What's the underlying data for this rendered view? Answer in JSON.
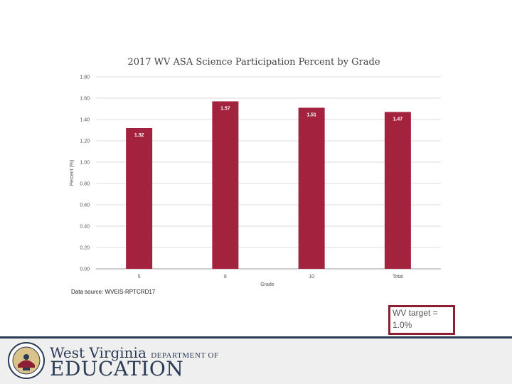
{
  "chart_data": {
    "type": "bar",
    "title": "2017 WV ASA Science Participation Percent by Grade",
    "categories": [
      "5",
      "8",
      "10",
      "Total"
    ],
    "values": [
      1.32,
      1.57,
      1.51,
      1.47
    ],
    "value_labels": [
      "1.32",
      "1.57",
      "1.51",
      "1.47"
    ],
    "xlabel": "Grade",
    "ylabel": "Percent (%)",
    "ylim": [
      0,
      1.8
    ],
    "yticks": [
      "0.00",
      "0.20",
      "0.40",
      "0.60",
      "0.80",
      "1.00",
      "1.20",
      "1.40",
      "1.60",
      "1.80"
    ],
    "grid": true,
    "bar_color": "#a3233f",
    "source": "Data source: WVEIS-RPTCRD17"
  },
  "callout": {
    "line1": "WV target =",
    "line2": "1.0%"
  },
  "footer": {
    "state": "West Virginia",
    "department": "DEPARTMENT OF",
    "agency": "EDUCATION"
  }
}
